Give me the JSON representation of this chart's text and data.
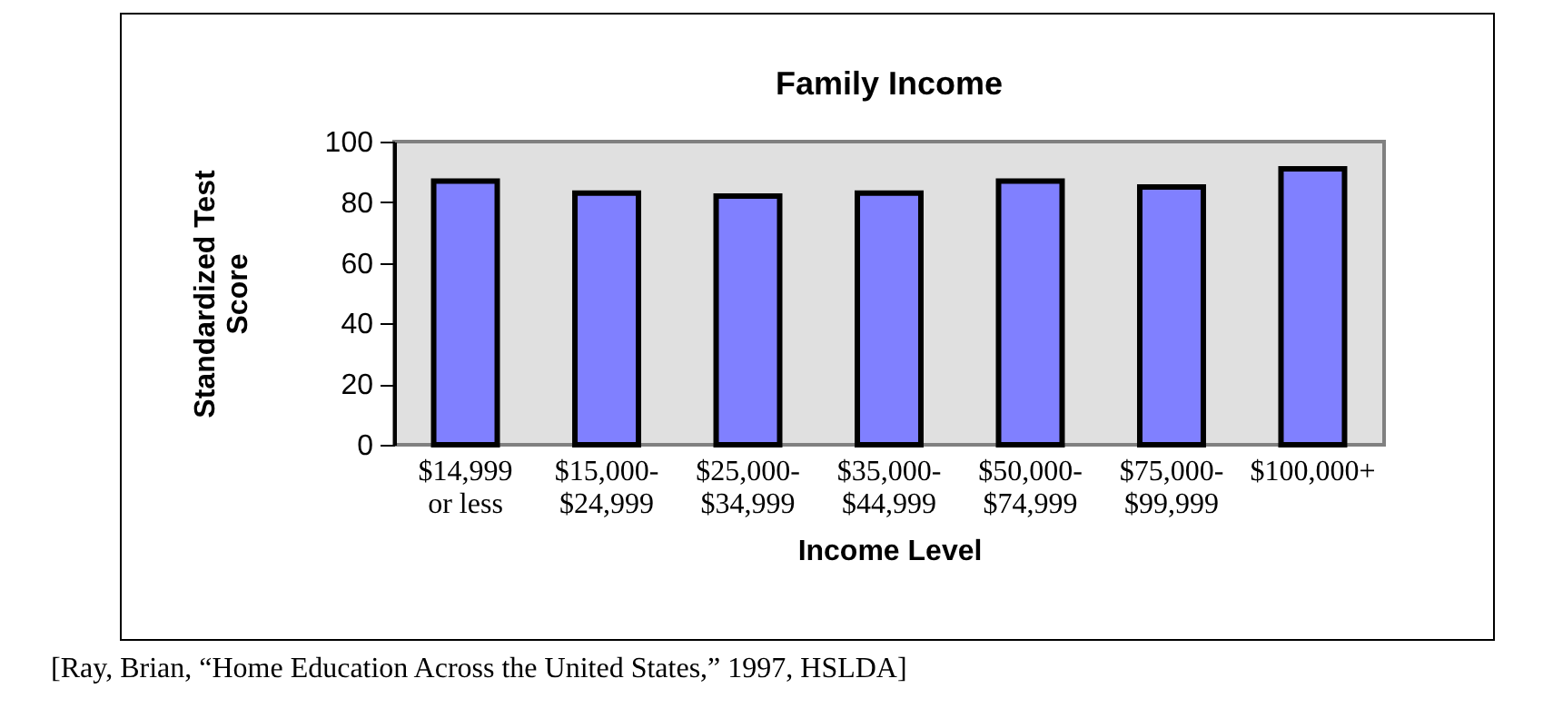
{
  "chart_data": {
    "type": "bar",
    "title": "Family Income",
    "xlabel": "Income Level",
    "ylabel": "Standardized Test Score",
    "categories": [
      "$14,999 or less",
      "$15,000-$24,999",
      "$25,000-$34,999",
      "$35,000-$44,999",
      "$50,000-$74,999",
      "$75,000-$99,999",
      "$100,000+"
    ],
    "values": [
      87,
      83,
      82,
      83,
      87,
      85,
      91
    ],
    "color": "#8080ff",
    "ylim": [
      0,
      100
    ],
    "yticks": [
      0,
      20,
      40,
      60,
      80,
      100
    ],
    "grid": false,
    "annotations": [
      "[Ray, Brian, “Home Education Across the United States,” 1997, HSLDA]"
    ]
  }
}
